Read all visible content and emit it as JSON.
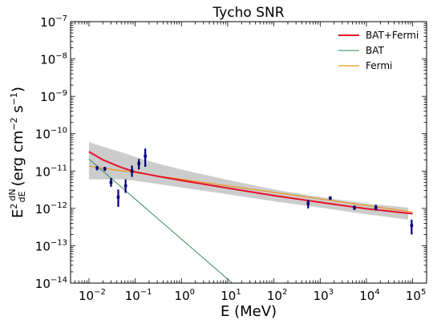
{
  "chart_data": {
    "type": "line",
    "title": "Tycho SNR",
    "xlabel": "E (MeV)",
    "ylabel": {
      "prefix": "E",
      "sup": "2",
      "frac_num": "dN",
      "frac_den": "dE",
      "rest": "(erg cm",
      "sup2": "−2",
      "rest2": " s",
      "sup3": "−1",
      "close": ")"
    },
    "xscale": "log",
    "yscale": "log",
    "xlim": [
      0.004,
      200000
    ],
    "ylim": [
      1e-14,
      1e-07
    ],
    "x_ticks": [
      {
        "v": 0.01,
        "base": "10",
        "exp": "−2"
      },
      {
        "v": 0.1,
        "base": "10",
        "exp": "−1"
      },
      {
        "v": 1,
        "base": "10",
        "exp": "0"
      },
      {
        "v": 10,
        "base": "10",
        "exp": "1"
      },
      {
        "v": 100,
        "base": "10",
        "exp": "2"
      },
      {
        "v": 1000,
        "base": "10",
        "exp": "3"
      },
      {
        "v": 10000,
        "base": "10",
        "exp": "4"
      },
      {
        "v": 100000,
        "base": "10",
        "exp": "5"
      }
    ],
    "y_ticks": [
      {
        "v": 1e-14,
        "base": "10",
        "exp": "−14"
      },
      {
        "v": 1e-13,
        "base": "10",
        "exp": "−13"
      },
      {
        "v": 1e-12,
        "base": "10",
        "exp": "−12"
      },
      {
        "v": 1e-11,
        "base": "10",
        "exp": "−11"
      },
      {
        "v": 1e-10,
        "base": "10",
        "exp": "−10"
      },
      {
        "v": 1e-09,
        "base": "10",
        "exp": "−9"
      },
      {
        "v": 1e-08,
        "base": "10",
        "exp": "−8"
      },
      {
        "v": 1e-07,
        "base": "10",
        "exp": "−7"
      }
    ],
    "grid": false,
    "legend_position": "top-right",
    "series": [
      {
        "name": "BAT+Fermi",
        "color": "#e8102a",
        "x": [
          0.01,
          0.02,
          0.05,
          0.1,
          0.3,
          1,
          10,
          100,
          1000,
          10000,
          100000
        ],
        "y": [
          3.3e-11,
          2e-11,
          1.25e-11,
          9.5e-12,
          7.3e-12,
          5.6e-12,
          3.5e-12,
          2.2e-12,
          1.45e-12,
          9.8e-13,
          7.2e-13
        ]
      },
      {
        "name": "BAT",
        "color": "#2e8b57",
        "x": [
          0.01,
          12.6
        ],
        "y": [
          2.1e-11,
          1e-14
        ]
      },
      {
        "name": "Fermi",
        "color": "#e8961e",
        "x": [
          0.01,
          100000
        ],
        "y": [
          1.35e-11,
          8e-13
        ]
      }
    ],
    "band": {
      "color": "#cccccc",
      "x": [
        0.01,
        0.02,
        0.05,
        0.1,
        0.3,
        1,
        10,
        100,
        1000,
        10000,
        80000
      ],
      "upper": [
        6e-11,
        4.5e-11,
        3.2e-11,
        2.4e-11,
        1.6e-11,
        1.1e-11,
        5.8e-12,
        3.2e-12,
        2e-12,
        1.35e-12,
        1.05e-12
      ],
      "lower": [
        6e-12,
        6e-12,
        6e-12,
        5.5e-12,
        4.5e-12,
        3.6e-12,
        2.4e-12,
        1.55e-12,
        1.05e-12,
        7e-13,
        5e-13
      ]
    },
    "points": {
      "color": "#00007a",
      "data": [
        {
          "x": 0.015,
          "y": 1.2e-11,
          "lo": 1.05e-11,
          "hi": 1.35e-11
        },
        {
          "x": 0.022,
          "y": 1.15e-11,
          "lo": 1e-11,
          "hi": 1.3e-11
        },
        {
          "x": 0.03,
          "y": 5e-12,
          "lo": 3.8e-12,
          "hi": 6.5e-12
        },
        {
          "x": 0.043,
          "y": 2e-12,
          "lo": 1.1e-12,
          "hi": 3.2e-12
        },
        {
          "x": 0.062,
          "y": 4e-12,
          "lo": 2.6e-12,
          "hi": 6e-12
        },
        {
          "x": 0.085,
          "y": 1e-11,
          "lo": 7e-12,
          "hi": 1.4e-11
        },
        {
          "x": 0.12,
          "y": 1.6e-11,
          "lo": 1.1e-11,
          "hi": 2.1e-11
        },
        {
          "x": 0.165,
          "y": 2.5e-11,
          "lo": 1.3e-11,
          "hi": 4e-11
        },
        {
          "x": 550,
          "y": 1.35e-12,
          "lo": 1e-12,
          "hi": 1.7e-12
        },
        {
          "x": 1650,
          "y": 1.9e-12,
          "lo": 1.7e-12,
          "hi": 2.1e-12
        },
        {
          "x": 5500,
          "y": 1.05e-12,
          "lo": 9e-13,
          "hi": 1.2e-12
        },
        {
          "x": 16000,
          "y": 1.05e-12,
          "lo": 8.8e-13,
          "hi": 1.25e-12
        },
        {
          "x": 95000,
          "y": 3.5e-13,
          "lo": 2e-13,
          "hi": 5e-13
        }
      ]
    }
  }
}
